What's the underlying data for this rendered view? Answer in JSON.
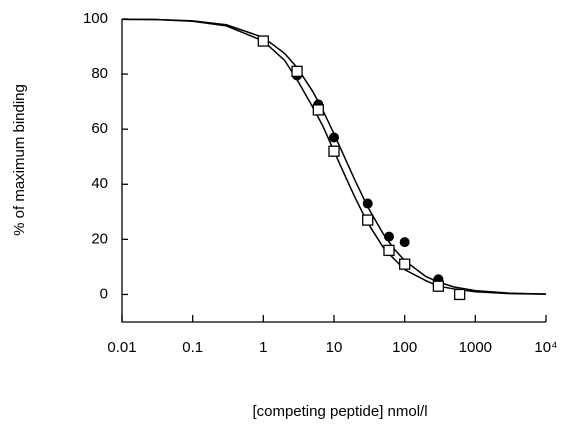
{
  "chart_data": {
    "type": "scatter",
    "x_label": "[competing peptide] nmol/l",
    "y_label": "% of maximum binding",
    "xscale": "log",
    "xlim": [
      0.01,
      10000
    ],
    "ylim": [
      -10,
      100
    ],
    "xticks": [
      0.01,
      0.1,
      1,
      10,
      100,
      1000,
      {
        "value": 10000,
        "label": "10⁴"
      }
    ],
    "yticks": [
      0,
      20,
      40,
      60,
      80,
      100
    ],
    "series": [
      {
        "marker": "circle",
        "color": "#000000",
        "x": [
          3,
          6,
          10,
          30,
          60,
          100,
          300
        ],
        "values": [
          79.5,
          69,
          57,
          33,
          21,
          19,
          5.5
        ]
      },
      {
        "marker": "square",
        "color": "#000000",
        "x": [
          1,
          3,
          6,
          10,
          30,
          60,
          100,
          300,
          600
        ],
        "values": [
          92,
          81,
          67,
          52,
          27,
          16,
          11,
          3,
          0
        ]
      },
      {
        "marker": "line",
        "color": "#000000",
        "x": [
          0.01,
          0.03,
          0.1,
          0.3,
          1,
          2,
          3,
          5,
          7,
          10,
          15,
          20,
          30,
          50,
          70,
          100,
          200,
          300,
          500,
          1000,
          3000,
          10000
        ],
        "values": [
          99.9,
          99.8,
          99.3,
          97.9,
          93.3,
          87.5,
          82.4,
          73.7,
          66.7,
          58.3,
          48.3,
          41.2,
          31.8,
          21.9,
          16.7,
          12.3,
          6.5,
          4.5,
          2.7,
          1.4,
          0.5,
          0.1
        ]
      },
      {
        "marker": "line",
        "color": "#000000",
        "x": [
          0.01,
          0.03,
          0.1,
          0.3,
          1,
          2,
          3,
          5,
          7,
          10,
          15,
          20,
          30,
          50,
          70,
          100,
          200,
          300,
          500,
          1000,
          3000,
          10000
        ],
        "values": [
          99.9,
          99.8,
          99.2,
          97.5,
          92,
          85,
          78,
          68,
          61,
          52,
          42,
          35,
          26,
          17,
          13,
          9,
          5,
          3,
          2,
          1,
          0.3,
          0.1
        ]
      }
    ]
  }
}
